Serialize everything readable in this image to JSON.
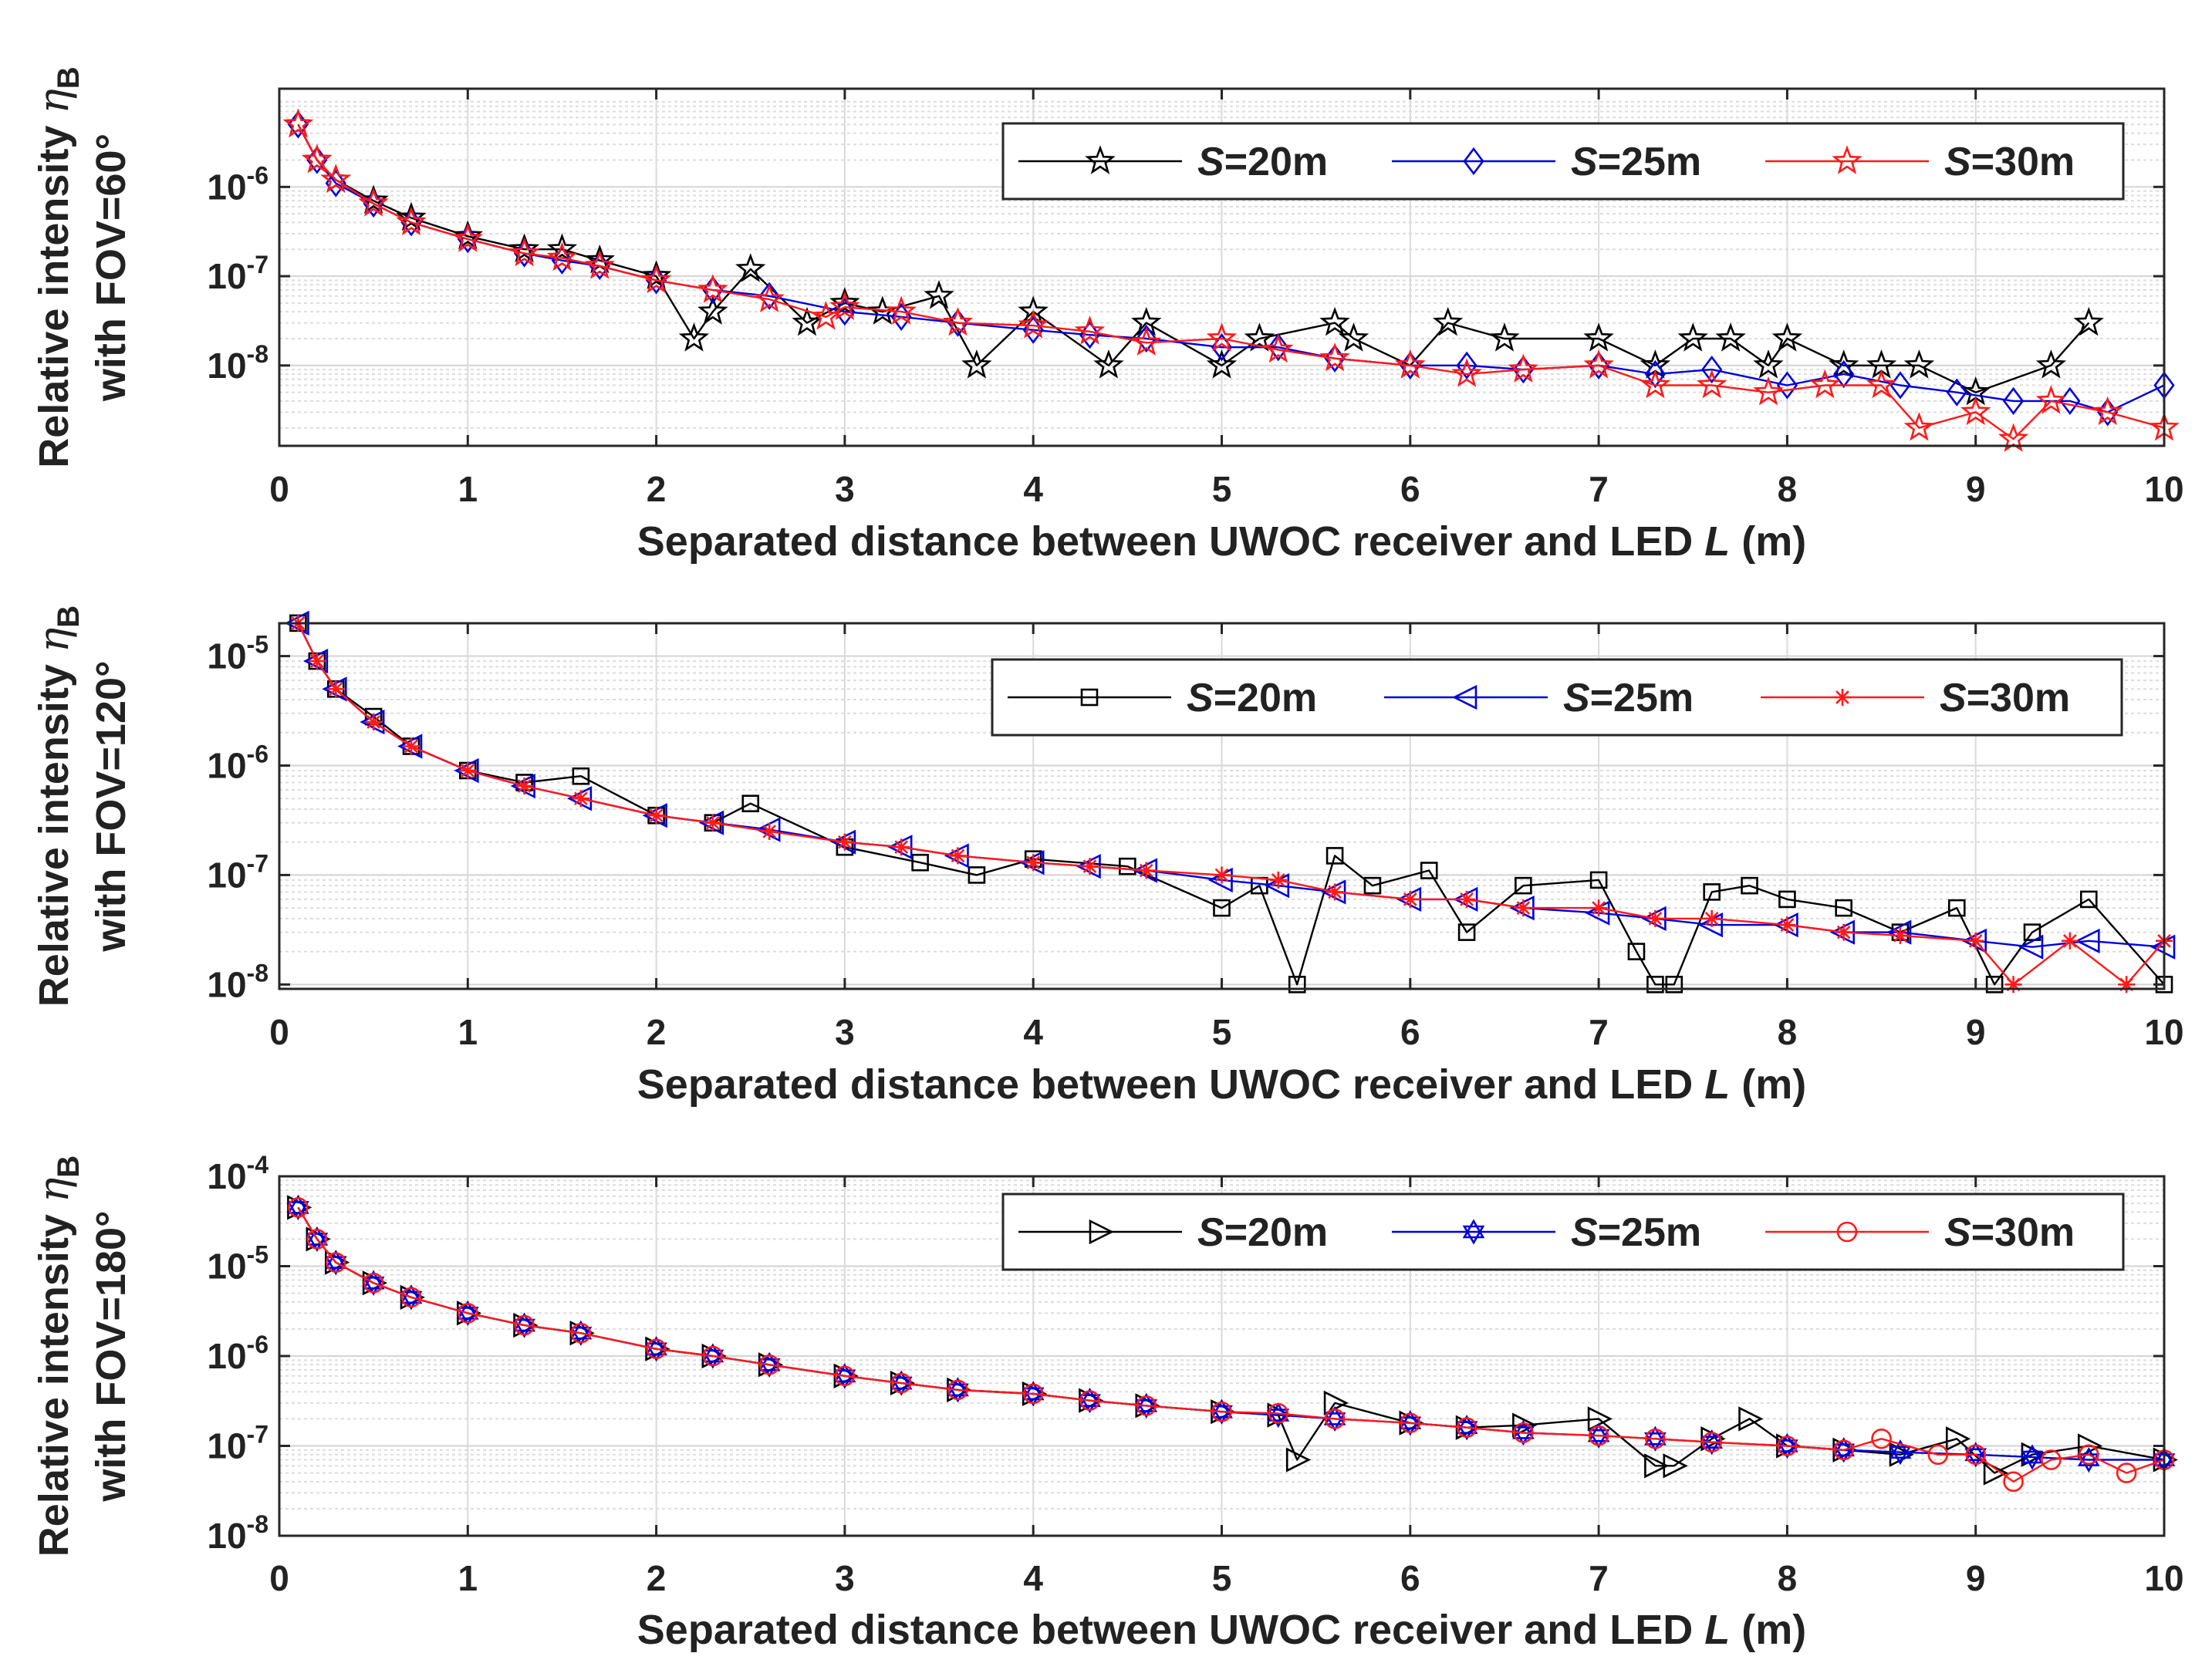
{
  "figure": {
    "colors": {
      "S20": "#000000",
      "S25": "#0000dd",
      "S30": "#ff1a1a",
      "grid": "#d0d0d0"
    }
  },
  "chart_data": [
    {
      "type": "line",
      "scale_y": "log",
      "xlabel_prefix": "Separated distance between UWOC receiver and LED ",
      "xlabel_var": "L",
      "xlabel_suffix": " (m)",
      "ylabel_line1": "Relative intensity ",
      "ylabel_sym": "η",
      "ylabel_sub": "B",
      "ylabel_line2": "with FOV=60°",
      "xlim": [
        0,
        10
      ],
      "xticks": [
        0,
        1,
        2,
        3,
        4,
        5,
        6,
        7,
        8,
        9,
        10
      ],
      "ylim_exp": [
        -8.9,
        -4.9
      ],
      "yticks": [
        {
          "base": "10",
          "exp": "-8",
          "e": -8
        },
        {
          "base": "10",
          "exp": "-7",
          "e": -7
        },
        {
          "base": "10",
          "exp": "-6",
          "e": -6
        }
      ],
      "legend_position": "top-right",
      "series": [
        {
          "name_var": "S",
          "name_rest": "=20m",
          "marker": "star",
          "color_key": "S20",
          "x": [
            0.1,
            0.2,
            0.3,
            0.5,
            0.7,
            1.0,
            1.3,
            1.5,
            1.7,
            2.0,
            2.2,
            2.3,
            2.5,
            2.8,
            3.0,
            3.2,
            3.5,
            3.7,
            4.0,
            4.4,
            4.6,
            5.0,
            5.2,
            5.6,
            5.7,
            6.0,
            6.2,
            6.5,
            7.0,
            7.3,
            7.5,
            7.7,
            7.9,
            8.0,
            8.3,
            8.5,
            8.7,
            9.0,
            9.4,
            9.6
          ],
          "y": [
            5e-06,
            2e-06,
            1.2e-06,
            7e-07,
            4.5e-07,
            2.8e-07,
            2e-07,
            2e-07,
            1.5e-07,
            1e-07,
            2e-08,
            4e-08,
            1.2e-07,
            3e-08,
            5e-08,
            4e-08,
            6e-08,
            1e-08,
            4e-08,
            1e-08,
            3e-08,
            1e-08,
            2e-08,
            3e-08,
            2e-08,
            1e-08,
            3e-08,
            2e-08,
            2e-08,
            1e-08,
            2e-08,
            2e-08,
            1e-08,
            2e-08,
            1e-08,
            1e-08,
            1e-08,
            5e-09,
            1e-08,
            3e-08
          ]
        },
        {
          "name_var": "S",
          "name_rest": "=25m",
          "marker": "diamond",
          "color_key": "S25",
          "x": [
            0.1,
            0.2,
            0.3,
            0.5,
            0.7,
            1.0,
            1.3,
            1.5,
            1.7,
            2.0,
            2.3,
            2.6,
            3.0,
            3.3,
            3.6,
            4.0,
            4.3,
            4.6,
            5.0,
            5.3,
            5.6,
            6.0,
            6.3,
            6.6,
            7.0,
            7.3,
            7.6,
            8.0,
            8.3,
            8.6,
            8.9,
            9.2,
            9.5,
            9.7,
            10.0
          ],
          "y": [
            5e-06,
            2e-06,
            1.1e-06,
            6.5e-07,
            4e-07,
            2.6e-07,
            1.8e-07,
            1.5e-07,
            1.3e-07,
            9e-08,
            7e-08,
            6e-08,
            4e-08,
            3.5e-08,
            3e-08,
            2.5e-08,
            2.2e-08,
            2e-08,
            1.6e-08,
            1.6e-08,
            1.2e-08,
            1e-08,
            1e-08,
            9e-09,
            1e-08,
            8e-09,
            9e-09,
            6e-09,
            8e-09,
            6e-09,
            5e-09,
            4e-09,
            4e-09,
            3e-09,
            6e-09
          ]
        },
        {
          "name_var": "S",
          "name_rest": "=30m",
          "marker": "star",
          "color_key": "S30",
          "x": [
            0.1,
            0.2,
            0.3,
            0.5,
            0.7,
            1.0,
            1.3,
            1.5,
            1.7,
            2.0,
            2.3,
            2.6,
            2.9,
            3.0,
            3.3,
            3.6,
            4.0,
            4.3,
            4.6,
            5.0,
            5.3,
            5.6,
            6.0,
            6.3,
            6.6,
            7.0,
            7.3,
            7.6,
            7.9,
            8.2,
            8.5,
            8.7,
            9.0,
            9.2,
            9.4,
            9.7,
            10.0
          ],
          "y": [
            5e-06,
            2e-06,
            1.2e-06,
            6.5e-07,
            4e-07,
            2.6e-07,
            1.8e-07,
            1.6e-07,
            1.3e-07,
            9e-08,
            7e-08,
            5.5e-08,
            3.5e-08,
            4.5e-08,
            4e-08,
            3e-08,
            2.8e-08,
            2.4e-08,
            1.8e-08,
            2e-08,
            1.5e-08,
            1.2e-08,
            1e-08,
            8e-09,
            9e-09,
            1e-08,
            6e-09,
            6e-09,
            5e-09,
            6e-09,
            6e-09,
            2e-09,
            3e-09,
            1.5e-09,
            4e-09,
            3e-09,
            2e-09
          ]
        }
      ]
    },
    {
      "type": "line",
      "scale_y": "log",
      "xlabel_prefix": "Separated distance between UWOC receiver and LED ",
      "xlabel_var": "L",
      "xlabel_suffix": " (m)",
      "ylabel_line1": "Relative intensity ",
      "ylabel_sym": "η",
      "ylabel_sub": "B",
      "ylabel_line2": "with FOV=120°",
      "xlim": [
        0,
        10
      ],
      "xticks": [
        0,
        1,
        2,
        3,
        4,
        5,
        6,
        7,
        8,
        9,
        10
      ],
      "ylim_exp": [
        -8.04,
        -4.7
      ],
      "yticks": [
        {
          "base": "10",
          "exp": "-8",
          "e": -8
        },
        {
          "base": "10",
          "exp": "-7",
          "e": -7
        },
        {
          "base": "10",
          "exp": "-6",
          "e": -6
        },
        {
          "base": "10",
          "exp": "-5",
          "e": -5
        }
      ],
      "legend_position": "top-right",
      "series": [
        {
          "name_var": "S",
          "name_rest": "=20m",
          "marker": "square",
          "color_key": "S20",
          "x": [
            0.1,
            0.2,
            0.3,
            0.5,
            0.7,
            1.0,
            1.3,
            1.6,
            2.0,
            2.3,
            2.5,
            3.0,
            3.4,
            3.7,
            4.0,
            4.5,
            5.0,
            5.2,
            5.4,
            5.6,
            5.8,
            6.1,
            6.3,
            6.6,
            7.0,
            7.2,
            7.3,
            7.4,
            7.6,
            7.8,
            8.0,
            8.3,
            8.6,
            8.9,
            9.1,
            9.3,
            9.6,
            10.0
          ],
          "y": [
            2e-05,
            9e-06,
            5e-06,
            2.8e-06,
            1.5e-06,
            9e-07,
            7e-07,
            8e-07,
            3.5e-07,
            3e-07,
            4.5e-07,
            1.8e-07,
            1.3e-07,
            1e-07,
            1.4e-07,
            1.2e-07,
            5e-08,
            8e-08,
            1e-08,
            1.5e-07,
            8e-08,
            1.1e-07,
            3e-08,
            8e-08,
            9e-08,
            2e-08,
            1e-08,
            1e-08,
            7e-08,
            8e-08,
            6e-08,
            5e-08,
            3e-08,
            5e-08,
            1e-08,
            3e-08,
            6e-08,
            1e-08
          ]
        },
        {
          "name_var": "S",
          "name_rest": "=25m",
          "marker": "triangle-left",
          "color_key": "S25",
          "x": [
            0.1,
            0.2,
            0.3,
            0.5,
            0.7,
            1.0,
            1.3,
            1.6,
            2.0,
            2.3,
            2.6,
            3.0,
            3.3,
            3.6,
            4.0,
            4.3,
            4.6,
            5.0,
            5.3,
            5.6,
            6.0,
            6.3,
            6.6,
            7.0,
            7.3,
            7.6,
            8.0,
            8.3,
            8.6,
            9.0,
            9.3,
            9.6,
            10.0
          ],
          "y": [
            2e-05,
            9e-06,
            5e-06,
            2.5e-06,
            1.5e-06,
            9e-07,
            6.5e-07,
            5e-07,
            3.5e-07,
            3e-07,
            2.6e-07,
            2e-07,
            1.8e-07,
            1.5e-07,
            1.3e-07,
            1.2e-07,
            1.1e-07,
            9e-08,
            8e-08,
            7e-08,
            6e-08,
            6e-08,
            5e-08,
            4.5e-08,
            4e-08,
            3.5e-08,
            3.5e-08,
            3e-08,
            3e-08,
            2.5e-08,
            2.2e-08,
            2.5e-08,
            2.2e-08
          ]
        },
        {
          "name_var": "S",
          "name_rest": "=30m",
          "marker": "asterisk",
          "color_key": "S30",
          "x": [
            0.1,
            0.2,
            0.3,
            0.5,
            0.7,
            1.0,
            1.3,
            1.6,
            2.0,
            2.3,
            2.6,
            3.0,
            3.3,
            3.6,
            4.0,
            4.3,
            4.6,
            5.0,
            5.3,
            5.6,
            6.0,
            6.3,
            6.6,
            7.0,
            7.3,
            7.6,
            8.0,
            8.3,
            8.6,
            9.0,
            9.2,
            9.5,
            9.8,
            10.0
          ],
          "y": [
            2e-05,
            9e-06,
            5e-06,
            2.5e-06,
            1.5e-06,
            9e-07,
            6.5e-07,
            5e-07,
            3.5e-07,
            3e-07,
            2.5e-07,
            2e-07,
            1.8e-07,
            1.5e-07,
            1.3e-07,
            1.2e-07,
            1.1e-07,
            1e-07,
            9e-08,
            7e-08,
            6e-08,
            6e-08,
            5e-08,
            5e-08,
            4e-08,
            4e-08,
            3.5e-08,
            3e-08,
            2.8e-08,
            2.5e-08,
            1e-08,
            2.5e-08,
            1e-08,
            2.5e-08
          ]
        }
      ]
    },
    {
      "type": "line",
      "scale_y": "log",
      "xlabel_prefix": "Separated distance between UWOC receiver and LED ",
      "xlabel_var": "L",
      "xlabel_suffix": " (m)",
      "ylabel_line1": "Relative intensity ",
      "ylabel_sym": "η",
      "ylabel_sub": "B",
      "ylabel_line2": "with FOV=180°",
      "xlim": [
        0,
        10
      ],
      "xticks": [
        0,
        1,
        2,
        3,
        4,
        5,
        6,
        7,
        8,
        9,
        10
      ],
      "ylim_exp": [
        -8,
        -4
      ],
      "yticks": [
        {
          "base": "10",
          "exp": "-8",
          "e": -8
        },
        {
          "base": "10",
          "exp": "-7",
          "e": -7
        },
        {
          "base": "10",
          "exp": "-6",
          "e": -6
        },
        {
          "base": "10",
          "exp": "-5",
          "e": -5
        },
        {
          "base": "10",
          "exp": "-4",
          "e": -4
        }
      ],
      "legend_position": "top-right",
      "series": [
        {
          "name_var": "S",
          "name_rest": "=20m",
          "marker": "triangle-right",
          "color_key": "S20",
          "x": [
            0.1,
            0.2,
            0.3,
            0.5,
            0.7,
            1.0,
            1.3,
            1.6,
            2.0,
            2.3,
            2.6,
            3.0,
            3.3,
            3.6,
            4.0,
            4.3,
            4.6,
            5.0,
            5.3,
            5.4,
            5.6,
            6.0,
            6.3,
            6.6,
            7.0,
            7.3,
            7.4,
            7.6,
            7.8,
            8.0,
            8.3,
            8.6,
            8.9,
            9.1,
            9.3,
            9.6,
            10.0
          ],
          "y": [
            4.5e-05,
            2e-05,
            1.1e-05,
            6.5e-06,
            4.5e-06,
            3e-06,
            2.2e-06,
            1.8e-06,
            1.2e-06,
            1e-06,
            8e-07,
            6e-07,
            5e-07,
            4.2e-07,
            3.8e-07,
            3.2e-07,
            2.8e-07,
            2.4e-07,
            2.2e-07,
            7e-08,
            3e-07,
            1.8e-07,
            1.6e-07,
            1.7e-07,
            2e-07,
            6e-08,
            6e-08,
            1.2e-07,
            2e-07,
            1e-07,
            9e-08,
            8e-08,
            1.2e-07,
            5e-08,
            8e-08,
            1e-07,
            7e-08
          ]
        },
        {
          "name_var": "S",
          "name_rest": "=25m",
          "marker": "hexagram",
          "color_key": "S25",
          "x": [
            0.1,
            0.2,
            0.3,
            0.5,
            0.7,
            1.0,
            1.3,
            1.6,
            2.0,
            2.3,
            2.6,
            3.0,
            3.3,
            3.6,
            4.0,
            4.3,
            4.6,
            5.0,
            5.3,
            5.6,
            6.0,
            6.3,
            6.6,
            7.0,
            7.3,
            7.6,
            8.0,
            8.3,
            8.6,
            9.0,
            9.3,
            9.6,
            10.0
          ],
          "y": [
            4.5e-05,
            2e-05,
            1.1e-05,
            6.5e-06,
            4.5e-06,
            3e-06,
            2.2e-06,
            1.8e-06,
            1.2e-06,
            1e-06,
            8e-07,
            6e-07,
            5e-07,
            4.2e-07,
            3.8e-07,
            3.2e-07,
            2.8e-07,
            2.4e-07,
            2.2e-07,
            2e-07,
            1.8e-07,
            1.6e-07,
            1.4e-07,
            1.3e-07,
            1.2e-07,
            1.1e-07,
            1e-07,
            9e-08,
            8.5e-08,
            8e-08,
            7.5e-08,
            7e-08,
            7e-08
          ]
        },
        {
          "name_var": "S",
          "name_rest": "=30m",
          "marker": "circle",
          "color_key": "S30",
          "x": [
            0.1,
            0.2,
            0.3,
            0.5,
            0.7,
            1.0,
            1.3,
            1.6,
            2.0,
            2.3,
            2.6,
            3.0,
            3.3,
            3.6,
            4.0,
            4.3,
            4.6,
            5.0,
            5.3,
            5.6,
            6.0,
            6.3,
            6.6,
            7.0,
            7.3,
            7.6,
            8.0,
            8.3,
            8.5,
            8.8,
            9.0,
            9.2,
            9.4,
            9.6,
            9.8,
            10.0
          ],
          "y": [
            4.5e-05,
            2e-05,
            1.1e-05,
            6.5e-06,
            4.5e-06,
            3e-06,
            2.2e-06,
            1.8e-06,
            1.2e-06,
            1e-06,
            8e-07,
            6e-07,
            5e-07,
            4.2e-07,
            3.8e-07,
            3.2e-07,
            2.8e-07,
            2.4e-07,
            2.3e-07,
            2e-07,
            1.8e-07,
            1.6e-07,
            1.4e-07,
            1.3e-07,
            1.2e-07,
            1.1e-07,
            1e-07,
            9e-08,
            1.2e-07,
            8e-08,
            8e-08,
            4e-08,
            7e-08,
            8e-08,
            5e-08,
            7e-08
          ]
        }
      ]
    }
  ]
}
